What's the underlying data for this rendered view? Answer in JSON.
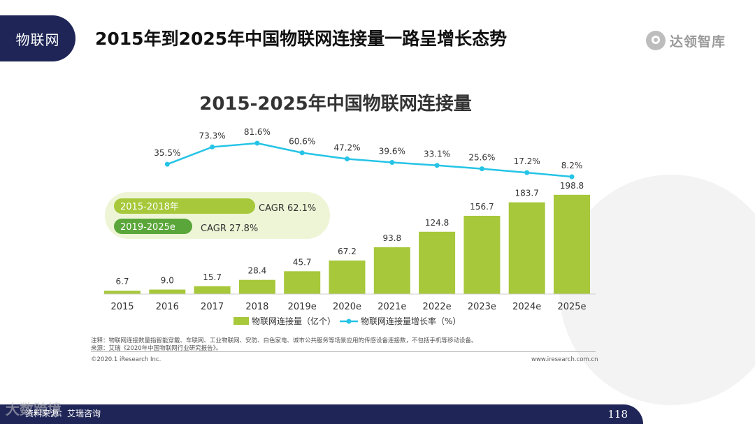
{
  "header": {
    "section_tag": "物联网",
    "title": "2015年到2025年中国物联网连接量一路呈增长态势",
    "logo_text": "达领智库"
  },
  "chart_data": {
    "type": "bar+line",
    "title": "2015-2025年中国物联网连接量",
    "categories": [
      "2015",
      "2016",
      "2017",
      "2018",
      "2019e",
      "2020e",
      "2021e",
      "2022e",
      "2023e",
      "2024e",
      "2025e"
    ],
    "series": [
      {
        "name": "物联网连接量（亿个）",
        "type": "bar",
        "color": "#a6c83a",
        "values": [
          6.7,
          9.0,
          15.7,
          28.4,
          45.7,
          67.2,
          93.8,
          124.8,
          156.7,
          183.7,
          198.8
        ],
        "labels": [
          "6.7",
          "9.0",
          "15.7",
          "28.4",
          "45.7",
          "67.2",
          "93.8",
          "124.8",
          "156.7",
          "183.7",
          "198.8"
        ]
      },
      {
        "name": "物联网连接量增长率（%）",
        "type": "line",
        "color": "#25c4e6",
        "values": [
          null,
          35.5,
          73.3,
          81.6,
          60.6,
          47.2,
          39.6,
          33.1,
          25.6,
          17.2,
          8.2
        ],
        "labels": [
          "",
          "35.5%",
          "73.3%",
          "81.6%",
          "60.6%",
          "47.2%",
          "39.6%",
          "33.1%",
          "25.6%",
          "17.2%",
          "8.2%"
        ]
      }
    ],
    "bar_ylim": [
      0,
      200
    ],
    "line_ylim": [
      0,
      100
    ],
    "legend_position": "bottom",
    "cagr": [
      {
        "period": "2015-2018年",
        "label": "CAGR 62.1%"
      },
      {
        "period": "2019-2025e",
        "label": "CAGR 27.8%"
      }
    ]
  },
  "notes": {
    "note": "注释：物联网连接数量指智能穿戴、车联网、工业物联网、安防、白色家电、城市公共服务等场景应用的传感设备连接数，不包括手机等移动设备。",
    "source": "来源：艾瑞《2020年中国物联网行业研究报告》。",
    "copyright": "©2020.1 iResearch Inc.",
    "website": "www.iresearch.com.cn"
  },
  "footer": {
    "left_text": "资料来源：艾瑞咨询",
    "page_number": "118",
    "watermark": "大数跨境"
  }
}
